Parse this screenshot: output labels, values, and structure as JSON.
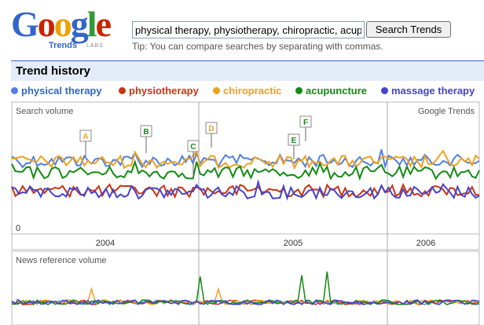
{
  "logo": {
    "text": "Google",
    "sub": "Trends",
    "labs": "LABS"
  },
  "search": {
    "value": "physical therapy, physiotherapy, chiropractic, acupuncture, massage therapy",
    "button_label": "Search Trends",
    "tip": "Tip: You can compare searches by separating with commas."
  },
  "trend_history": {
    "title": "Trend history"
  },
  "colors": {
    "physical_therapy": "#4f81e0",
    "physiotherapy": "#cc3311",
    "chiropractic": "#f0a020",
    "acupuncture": "#138a13",
    "massage_therapy": "#4444cc"
  },
  "chart_data": [
    {
      "type": "line",
      "title": "Search volume",
      "source_label": "Google Trends",
      "x_axis": {
        "tick_labels": [
          "2004",
          "2005",
          "2006"
        ],
        "range": [
          "2004-01",
          "2006-06"
        ]
      },
      "y_axis": {
        "min_label": "0",
        "tick_labels": []
      },
      "grid": true,
      "legend_position": "top",
      "series": [
        {
          "name": "physical therapy",
          "color": "#4f81e0",
          "mean": 1.0,
          "note": "approximate relative level"
        },
        {
          "name": "physiotherapy",
          "color": "#cc3311",
          "mean": 0.55
        },
        {
          "name": "chiropractic",
          "color": "#f0a020",
          "mean": 0.98
        },
        {
          "name": "acupuncture",
          "color": "#138a13",
          "mean": 0.75
        },
        {
          "name": "massage therapy",
          "color": "#4444cc",
          "mean": 0.53
        }
      ],
      "annotations": [
        {
          "label": "A",
          "color": "#f0a020"
        },
        {
          "label": "B",
          "color": "#138a13"
        },
        {
          "label": "C",
          "color": "#138a13"
        },
        {
          "label": "D",
          "color": "#f0a020"
        },
        {
          "label": "E",
          "color": "#138a13"
        },
        {
          "label": "F",
          "color": "#138a13"
        }
      ]
    },
    {
      "type": "line",
      "title": "News reference volume",
      "x_axis": {
        "tick_labels": []
      },
      "y_axis": {
        "min_label": "0"
      },
      "series_names": [
        "physical therapy",
        "physiotherapy",
        "chiropractic",
        "acupuncture",
        "massage therapy"
      ]
    }
  ]
}
